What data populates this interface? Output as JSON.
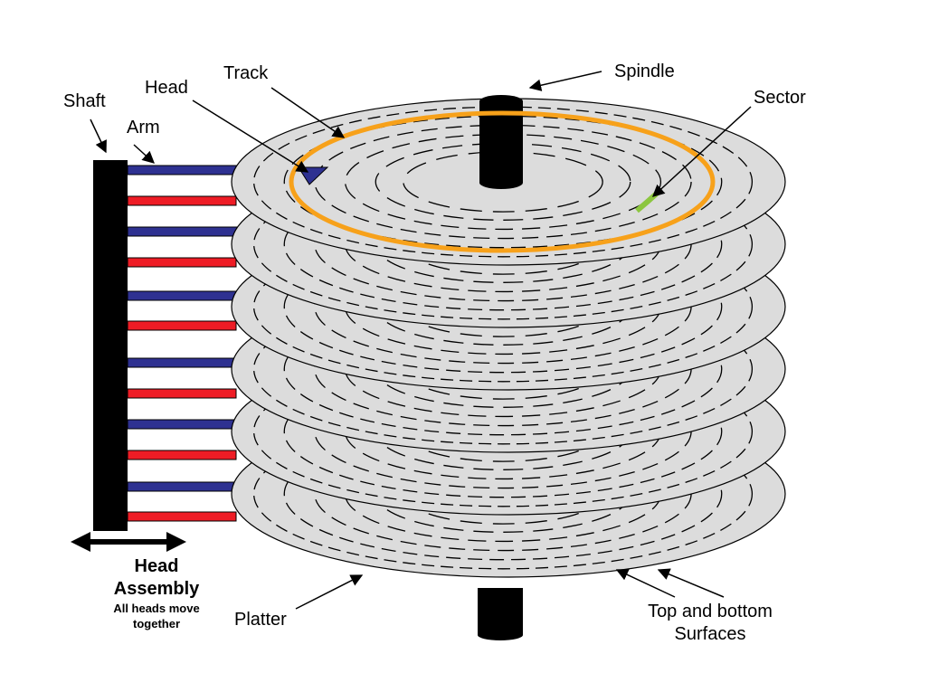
{
  "labels": {
    "shaft": "Shaft",
    "head": "Head",
    "arm": "Arm",
    "track": "Track",
    "spindle": "Spindle",
    "sector": "Sector",
    "head_assembly_line1": "Head",
    "head_assembly_line2": "Assembly",
    "head_assembly_note1": "All heads move",
    "head_assembly_note2": "together",
    "platter": "Platter",
    "surfaces_line1": "Top and bottom",
    "surfaces_line2": "Surfaces"
  },
  "platter_count": 6,
  "colors": {
    "platter_fill": "#dcdcdc",
    "platter_stroke": "#000000",
    "track_highlight": "#f7a11a",
    "sector_highlight": "#8cc63f",
    "top_arm": "#2e3191",
    "bottom_arm": "#ee1c25",
    "shaft": "#000000",
    "spindle": "#000000"
  }
}
